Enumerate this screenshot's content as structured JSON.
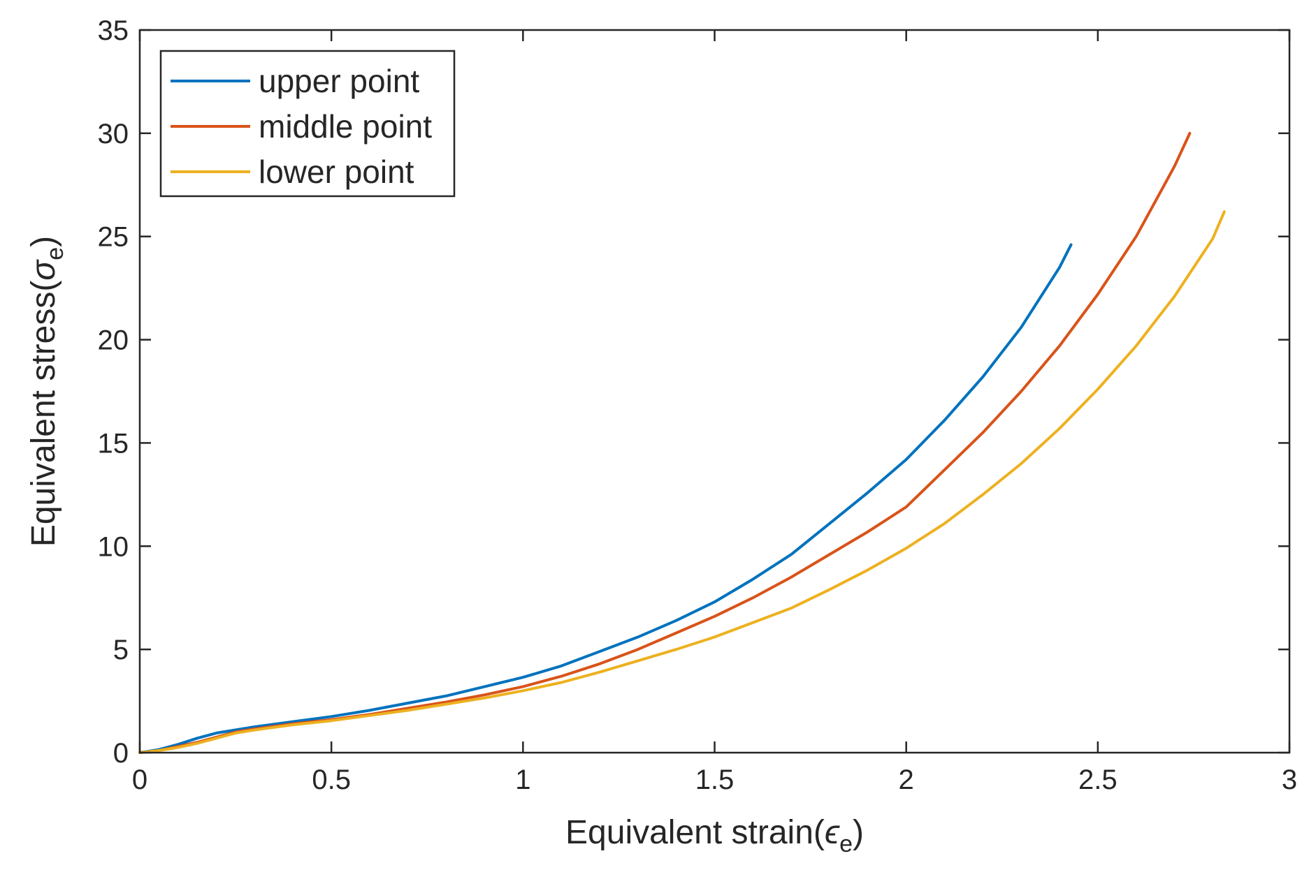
{
  "chart_data": {
    "type": "line",
    "title": "",
    "xlabel": "Equivalent strain(",
    "xlabel_symbol": "ϵ",
    "xlabel_sub": "e",
    "xlabel_close": ")",
    "ylabel": "Equivalent stress(",
    "ylabel_symbol": "σ",
    "ylabel_sub": "e",
    "ylabel_close": ")",
    "xlim": [
      0,
      3
    ],
    "ylim": [
      0,
      35
    ],
    "xticks": [
      0,
      0.5,
      1,
      1.5,
      2,
      2.5,
      3
    ],
    "xtick_labels": [
      "0",
      "0.5",
      "1",
      "1.5",
      "2",
      "2.5",
      "3"
    ],
    "yticks": [
      0,
      5,
      10,
      15,
      20,
      25,
      30,
      35
    ],
    "ytick_labels": [
      "0",
      "5",
      "10",
      "15",
      "20",
      "25",
      "30",
      "35"
    ],
    "grid": false,
    "legend_position": "top-left",
    "series": [
      {
        "name": "upper point",
        "color": "#0072BD",
        "x": [
          0,
          0.05,
          0.1,
          0.15,
          0.2,
          0.3,
          0.4,
          0.5,
          0.6,
          0.7,
          0.8,
          0.9,
          1.0,
          1.1,
          1.2,
          1.3,
          1.4,
          1.5,
          1.6,
          1.7,
          1.8,
          1.9,
          2.0,
          2.1,
          2.2,
          2.3,
          2.4,
          2.43
        ],
        "y": [
          0,
          0.15,
          0.4,
          0.7,
          0.95,
          1.25,
          1.5,
          1.75,
          2.05,
          2.4,
          2.75,
          3.2,
          3.65,
          4.2,
          4.9,
          5.6,
          6.4,
          7.3,
          8.4,
          9.6,
          11.1,
          12.6,
          14.2,
          16.1,
          18.2,
          20.6,
          23.5,
          24.6
        ]
      },
      {
        "name": "middle point",
        "color": "#D95319",
        "x": [
          0,
          0.05,
          0.1,
          0.15,
          0.2,
          0.25,
          0.3,
          0.4,
          0.5,
          0.6,
          0.7,
          0.8,
          0.9,
          1.0,
          1.1,
          1.2,
          1.3,
          1.4,
          1.5,
          1.6,
          1.7,
          1.8,
          1.9,
          2.0,
          2.1,
          2.2,
          2.3,
          2.4,
          2.5,
          2.6,
          2.7,
          2.74
        ],
        "y": [
          0,
          0.1,
          0.3,
          0.5,
          0.75,
          1.0,
          1.15,
          1.4,
          1.6,
          1.85,
          2.15,
          2.45,
          2.8,
          3.2,
          3.7,
          4.3,
          5.0,
          5.8,
          6.6,
          7.5,
          8.5,
          9.6,
          10.7,
          11.9,
          13.7,
          15.5,
          17.5,
          19.7,
          22.2,
          25.0,
          28.4,
          30.0
        ]
      },
      {
        "name": "lower point",
        "color": "#EDB120",
        "x": [
          0,
          0.05,
          0.1,
          0.15,
          0.2,
          0.25,
          0.3,
          0.4,
          0.5,
          0.6,
          0.7,
          0.8,
          0.9,
          1.0,
          1.1,
          1.2,
          1.3,
          1.4,
          1.5,
          1.6,
          1.7,
          1.8,
          1.9,
          2.0,
          2.1,
          2.2,
          2.3,
          2.4,
          2.5,
          2.6,
          2.7,
          2.8,
          2.83
        ],
        "y": [
          0,
          0.1,
          0.25,
          0.45,
          0.7,
          0.95,
          1.1,
          1.35,
          1.55,
          1.8,
          2.05,
          2.35,
          2.65,
          3.0,
          3.4,
          3.9,
          4.45,
          5.0,
          5.6,
          6.3,
          7.0,
          7.9,
          8.85,
          9.9,
          11.1,
          12.5,
          14.0,
          15.7,
          17.6,
          19.7,
          22.1,
          24.9,
          26.2
        ]
      }
    ]
  }
}
